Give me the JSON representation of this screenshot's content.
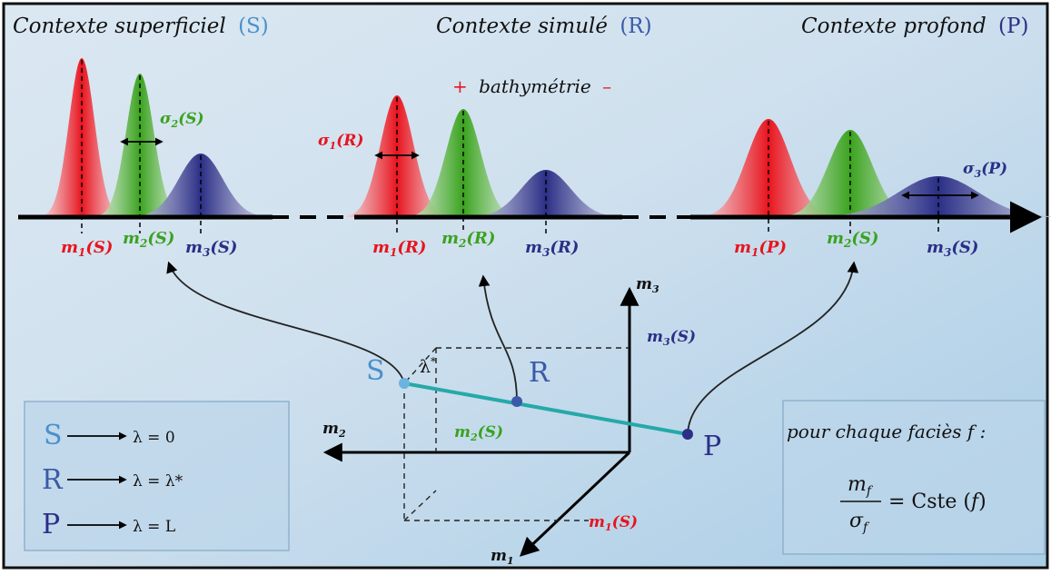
{
  "colors": {
    "red": "#e8141e",
    "green": "#3aa21e",
    "blue": "#2b2f86",
    "light_blue": "#4a90cc",
    "accent_mid": "#3a5aa8",
    "line_teal": "#25a9a8",
    "axis": "#000000"
  },
  "header": {
    "s_title": "Contexte superficiel",
    "s_letter": "(S)",
    "r_title": "Contexte simulé",
    "r_letter": "(R)",
    "p_title": "Contexte profond",
    "p_letter": "(P)"
  },
  "bathymetry": {
    "plus": "+",
    "label": "bathymétrie",
    "minus": "–"
  },
  "sigma_labels": {
    "s": "σ",
    "s_sub": "2",
    "s_arg": "(S)",
    "r": "σ",
    "r_sub": "1",
    "r_arg": "(R)",
    "p": "σ",
    "p_sub": "3",
    "p_arg": "(P)"
  },
  "mean_labels": {
    "s": [
      {
        "m": "m",
        "sub": "1",
        "arg": "(S)"
      },
      {
        "m": "m",
        "sub": "2",
        "arg": "(S)"
      },
      {
        "m": "m",
        "sub": "3",
        "arg": "(S)"
      }
    ],
    "r": [
      {
        "m": "m",
        "sub": "1",
        "arg": "(R)"
      },
      {
        "m": "m",
        "sub": "2",
        "arg": "(R)"
      },
      {
        "m": "m",
        "sub": "3",
        "arg": "(R)"
      }
    ],
    "p": [
      {
        "m": "m",
        "sub": "1",
        "arg": "(P)"
      },
      {
        "m": "m",
        "sub": "2",
        "arg": "(S)"
      },
      {
        "m": "m",
        "sub": "3",
        "arg": "(S)"
      }
    ]
  },
  "axes3d": {
    "m3": "m",
    "m3_sub": "3",
    "m2": "m",
    "m2_sub": "2",
    "m1": "m",
    "m1_sub": "1",
    "m3S": "m",
    "m3S_sub": "3",
    "m3S_arg": "(S)",
    "m2S": "m",
    "m2S_sub": "2",
    "m2S_arg": "(S)",
    "m1S": "m",
    "m1S_sub": "1",
    "m1S_arg": "(S)",
    "lambda_star": "λ",
    "lambda_star_sup": "*"
  },
  "points": {
    "S": "S",
    "R": "R",
    "P": "P"
  },
  "legend": {
    "rows": [
      {
        "letter": "S",
        "text": "λ = 0"
      },
      {
        "letter": "R",
        "text": "λ = λ*"
      },
      {
        "letter": "P",
        "text": "λ = L"
      }
    ]
  },
  "formula_box": {
    "title": "pour chaque faciès f :",
    "numerator": "m",
    "num_sub": "f",
    "denominator": "σ",
    "den_sub": "f",
    "rhs": "= Cste (",
    "rhs_f": "f",
    "rhs_close": ")"
  }
}
